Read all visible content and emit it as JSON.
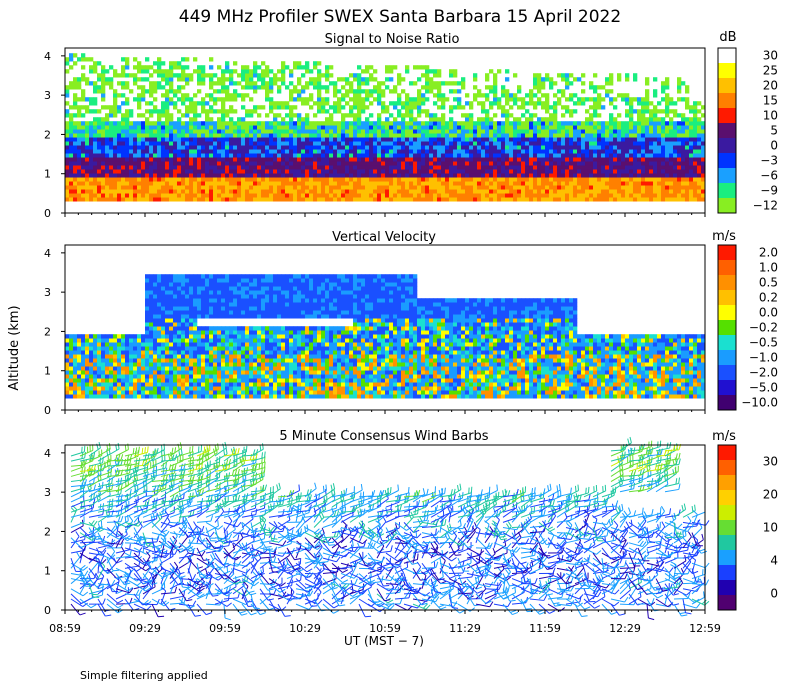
{
  "title": "449 MHz Profiler SWEX Santa Barbara 15 April 2022",
  "footnote": "Simple filtering applied",
  "ylabel": "Altitude (km)",
  "xlabel": "UT  (MST − 7)",
  "x_ticks": [
    "08:59",
    "09:29",
    "09:59",
    "10:29",
    "10:59",
    "11:29",
    "11:59",
    "12:29",
    "12:59"
  ],
  "y_ticks": [
    "0",
    "1",
    "2",
    "3",
    "4"
  ],
  "chart_data": [
    {
      "type": "heatmap",
      "title": "Signal to Noise Ratio",
      "units": "dB",
      "x_range": [
        "08:59",
        "12:59"
      ],
      "ylim": [
        0,
        4.2
      ],
      "colorbar_labels": [
        "30",
        "25",
        "20",
        "15",
        "10",
        "5",
        "0",
        "−3",
        "−6",
        "−9",
        "−12"
      ],
      "colorbar_colors": [
        "#ffffff",
        "#ffff00",
        "#ffc000",
        "#ff8000",
        "#ff1a00",
        "#5a0f6e",
        "#3a1aa0",
        "#0033ff",
        "#1aa0ff",
        "#1aee80",
        "#88ee22"
      ],
      "description_rows": [
        {
          "altitude_km": [
            0.3,
            0.9
          ],
          "dominant_db": 17
        },
        {
          "altitude_km": [
            0.9,
            1.4
          ],
          "dominant_db": 4
        },
        {
          "altitude_km": [
            1.4,
            1.9
          ],
          "dominant_db": -3
        },
        {
          "altitude_km": [
            1.9,
            2.3
          ],
          "dominant_db": -9
        },
        {
          "altitude_km": [
            2.3,
            4.0
          ],
          "dominant_db": -12
        }
      ]
    },
    {
      "type": "heatmap",
      "title": "Vertical Velocity",
      "units": "m/s",
      "x_range": [
        "08:59",
        "12:59"
      ],
      "ylim": [
        0,
        4.2
      ],
      "colorbar_labels": [
        "2.0",
        "1.0",
        "0.5",
        "0.2",
        "0.0",
        "−0.2",
        "−0.5",
        "−1.0",
        "−2.0",
        "−5.0",
        "−10.0"
      ],
      "colorbar_colors": [
        "#ff1a00",
        "#ff6000",
        "#ff9000",
        "#ffc000",
        "#ffff00",
        "#55e000",
        "#1ae0d0",
        "#1a9cff",
        "#1a50ff",
        "#2010d0",
        "#400070"
      ],
      "description_rows": [
        {
          "altitude_km": [
            0.3,
            1.4
          ],
          "dominant_m_s": -0.5
        },
        {
          "altitude_km": [
            1.4,
            2.3
          ],
          "dominant_m_s": -1.0
        },
        {
          "altitude_km": [
            2.3,
            3.5
          ],
          "dominant_m_s": -2.0
        }
      ]
    },
    {
      "type": "wind_barbs",
      "title": "5 Minute Consensus Wind Barbs",
      "units": "m/s",
      "x_range": [
        "08:59",
        "12:59"
      ],
      "ylim": [
        0,
        4.2
      ],
      "colorbar_labels": [
        "30",
        "20",
        "10",
        "4",
        "0"
      ],
      "colorbar_colors": [
        "#ff1a00",
        "#ff6000",
        "#ffa000",
        "#ffd000",
        "#ccee00",
        "#66dd33",
        "#20c8a0",
        "#1aa0ff",
        "#1a40ff",
        "#2000b0",
        "#500070"
      ],
      "speed_by_altitude_km": [
        {
          "altitude_km": 0.5,
          "speed_m_s": 8
        },
        {
          "altitude_km": 1.5,
          "speed_m_s": 7
        },
        {
          "altitude_km": 2.5,
          "speed_m_s": 10
        },
        {
          "altitude_km": 3.5,
          "speed_m_s": 15
        }
      ]
    }
  ]
}
